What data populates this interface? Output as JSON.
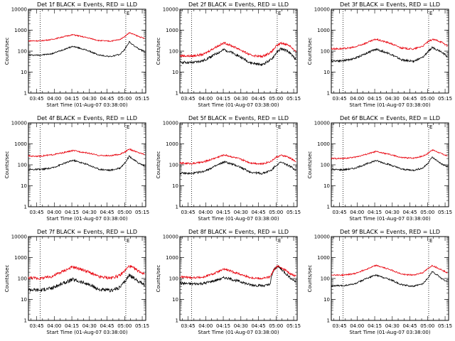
{
  "chart_data": [
    {
      "type": "line",
      "title": "Det 1f BLACK = Events, RED = LLD",
      "xlabel": "Start Time (01-Aug-07 03:38:00)",
      "ylabel": "Counts/sec",
      "yscale": "log",
      "ylim": [
        1,
        10000
      ],
      "xlim": [
        "03:38",
        "05:18"
      ],
      "x_ticks": [
        "03:45",
        "04:00",
        "04:15",
        "04:30",
        "04:45",
        "05:00",
        "05:15"
      ],
      "y_ticks": [
        "1",
        "10",
        "100",
        "1000",
        "10000"
      ],
      "markers": [
        {
          "time": "03:48",
          "label": ""
        },
        {
          "time": "05:01",
          "label": "E"
        }
      ],
      "series": [
        {
          "color": "#000000",
          "x": [
            "03:38",
            "03:48",
            "03:58",
            "04:08",
            "04:16",
            "04:28",
            "04:38",
            "04:48",
            "04:56",
            "05:00",
            "05:04",
            "05:08",
            "05:12",
            "05:17"
          ],
          "values": [
            65,
            65,
            75,
            120,
            170,
            110,
            65,
            55,
            70,
            120,
            280,
            180,
            130,
            95
          ]
        },
        {
          "color": "#e8000b",
          "x": [
            "03:38",
            "03:48",
            "03:58",
            "04:08",
            "04:16",
            "04:28",
            "04:38",
            "04:48",
            "04:56",
            "05:00",
            "05:04",
            "05:08",
            "05:12",
            "05:17"
          ],
          "values": [
            310,
            310,
            360,
            490,
            610,
            440,
            320,
            300,
            360,
            500,
            760,
            620,
            500,
            400
          ]
        }
      ]
    },
    {
      "type": "line",
      "title": "Det 2f BLACK = Events, RED = LLD",
      "xlabel": "Start Time (01-Aug-07 03:38:00)",
      "ylabel": "Counts/sec",
      "yscale": "log",
      "ylim": [
        1,
        10000
      ],
      "xlim": [
        "03:38",
        "05:18"
      ],
      "x_ticks": [
        "03:45",
        "04:00",
        "04:15",
        "04:30",
        "04:45",
        "05:00",
        "05:15"
      ],
      "y_ticks": [
        "1",
        "10",
        "100",
        "1000",
        "10000"
      ],
      "markers": [
        {
          "time": "03:48",
          "label": ""
        },
        {
          "time": "05:01",
          "label": "E"
        }
      ],
      "series": [
        {
          "color": "#000000",
          "x": [
            "03:38",
            "03:48",
            "03:58",
            "04:08",
            "04:16",
            "04:28",
            "04:38",
            "04:48",
            "04:56",
            "05:00",
            "05:04",
            "05:08",
            "05:12",
            "05:17"
          ],
          "values": [
            30,
            28,
            35,
            70,
            120,
            60,
            28,
            22,
            40,
            80,
            130,
            110,
            80,
            40
          ]
        },
        {
          "color": "#e8000b",
          "x": [
            "03:38",
            "03:48",
            "03:58",
            "04:08",
            "04:16",
            "04:28",
            "04:38",
            "04:48",
            "04:56",
            "05:00",
            "05:04",
            "05:08",
            "05:12",
            "05:17"
          ],
          "values": [
            60,
            58,
            70,
            150,
            250,
            130,
            65,
            55,
            90,
            170,
            240,
            220,
            180,
            90
          ]
        }
      ]
    },
    {
      "type": "line",
      "title": "Det 3f BLACK = Events, RED = LLD",
      "xlabel": "Start Time (01-Aug-07 03:38:00)",
      "ylabel": "Counts/sec",
      "yscale": "log",
      "ylim": [
        1,
        10000
      ],
      "xlim": [
        "03:38",
        "05:18"
      ],
      "x_ticks": [
        "03:45",
        "04:00",
        "04:15",
        "04:30",
        "04:45",
        "05:00",
        "05:15"
      ],
      "y_ticks": [
        "1",
        "10",
        "100",
        "1000",
        "10000"
      ],
      "markers": [
        {
          "time": "03:48",
          "label": ""
        },
        {
          "time": "05:01",
          "label": "E"
        }
      ],
      "series": [
        {
          "color": "#000000",
          "x": [
            "03:38",
            "03:48",
            "03:58",
            "04:08",
            "04:16",
            "04:28",
            "04:38",
            "04:48",
            "04:56",
            "05:00",
            "05:04",
            "05:08",
            "05:12",
            "05:17"
          ],
          "values": [
            35,
            35,
            45,
            80,
            125,
            75,
            38,
            33,
            50,
            90,
            150,
            120,
            95,
            55
          ]
        },
        {
          "color": "#e8000b",
          "x": [
            "03:38",
            "03:48",
            "03:58",
            "04:08",
            "04:16",
            "04:28",
            "04:38",
            "04:48",
            "04:56",
            "05:00",
            "05:04",
            "05:08",
            "05:12",
            "05:17"
          ],
          "values": [
            130,
            130,
            155,
            250,
            370,
            240,
            140,
            125,
            175,
            270,
            360,
            330,
            270,
            180
          ]
        }
      ]
    },
    {
      "type": "line",
      "title": "Det 4f BLACK = Events, RED = LLD",
      "xlabel": "Start Time (01-Aug-07 03:38:00)",
      "ylabel": "Counts/sec",
      "yscale": "log",
      "ylim": [
        1,
        10000
      ],
      "xlim": [
        "03:38",
        "05:18"
      ],
      "x_ticks": [
        "03:45",
        "04:00",
        "04:15",
        "04:30",
        "04:45",
        "05:00",
        "05:15"
      ],
      "y_ticks": [
        "1",
        "10",
        "100",
        "1000",
        "10000"
      ],
      "markers": [
        {
          "time": "03:48",
          "label": ""
        },
        {
          "time": "05:01",
          "label": "E"
        }
      ],
      "series": [
        {
          "color": "#000000",
          "x": [
            "03:38",
            "03:48",
            "03:58",
            "04:08",
            "04:16",
            "04:28",
            "04:38",
            "04:48",
            "04:56",
            "05:00",
            "05:04",
            "05:08",
            "05:12",
            "05:17"
          ],
          "values": [
            60,
            60,
            70,
            115,
            165,
            105,
            62,
            55,
            70,
            120,
            260,
            170,
            120,
            90
          ]
        },
        {
          "color": "#e8000b",
          "x": [
            "03:38",
            "03:48",
            "03:58",
            "04:08",
            "04:16",
            "04:28",
            "04:38",
            "04:48",
            "04:56",
            "05:00",
            "05:04",
            "05:08",
            "05:12",
            "05:17"
          ],
          "values": [
            260,
            260,
            300,
            380,
            480,
            370,
            280,
            270,
            320,
            400,
            560,
            460,
            380,
            320
          ]
        }
      ]
    },
    {
      "type": "line",
      "title": "Det 5f BLACK = Events, RED = LLD",
      "xlabel": "Start Time (01-Aug-07 03:38:00)",
      "ylabel": "Counts/sec",
      "yscale": "log",
      "ylim": [
        1,
        10000
      ],
      "xlim": [
        "03:38",
        "05:18"
      ],
      "x_ticks": [
        "03:45",
        "04:00",
        "04:15",
        "04:30",
        "04:45",
        "05:00",
        "05:15"
      ],
      "y_ticks": [
        "1",
        "10",
        "100",
        "1000",
        "10000"
      ],
      "markers": [
        {
          "time": "03:48",
          "label": ""
        },
        {
          "time": "05:01",
          "label": "E"
        }
      ],
      "series": [
        {
          "color": "#000000",
          "x": [
            "03:38",
            "03:48",
            "03:58",
            "04:08",
            "04:16",
            "04:28",
            "04:38",
            "04:48",
            "04:56",
            "05:00",
            "05:04",
            "05:08",
            "05:12",
            "05:17"
          ],
          "values": [
            40,
            38,
            48,
            85,
            140,
            85,
            45,
            38,
            55,
            95,
            130,
            110,
            85,
            55
          ]
        },
        {
          "color": "#e8000b",
          "x": [
            "03:38",
            "03:48",
            "03:58",
            "04:08",
            "04:16",
            "04:28",
            "04:38",
            "04:48",
            "04:56",
            "05:00",
            "05:04",
            "05:08",
            "05:12",
            "05:17"
          ],
          "values": [
            120,
            115,
            135,
            210,
            300,
            200,
            125,
            110,
            150,
            230,
            280,
            260,
            210,
            140
          ]
        }
      ]
    },
    {
      "type": "line",
      "title": "Det 6f BLACK = Events, RED = LLD",
      "xlabel": "Start Time (01-Aug-07 03:38:00)",
      "ylabel": "Counts/sec",
      "yscale": "log",
      "ylim": [
        1,
        10000
      ],
      "xlim": [
        "03:38",
        "05:18"
      ],
      "x_ticks": [
        "03:45",
        "04:00",
        "04:15",
        "04:30",
        "04:45",
        "05:00",
        "05:15"
      ],
      "y_ticks": [
        "1",
        "10",
        "100",
        "1000",
        "10000"
      ],
      "markers": [
        {
          "time": "03:48",
          "label": ""
        },
        {
          "time": "05:01",
          "label": "E"
        }
      ],
      "series": [
        {
          "color": "#000000",
          "x": [
            "03:38",
            "03:48",
            "03:58",
            "04:08",
            "04:16",
            "04:28",
            "04:38",
            "04:48",
            "04:56",
            "05:00",
            "05:04",
            "05:08",
            "05:12",
            "05:17"
          ],
          "values": [
            60,
            58,
            68,
            110,
            160,
            100,
            62,
            55,
            70,
            115,
            230,
            160,
            110,
            80
          ]
        },
        {
          "color": "#e8000b",
          "x": [
            "03:38",
            "03:48",
            "03:58",
            "04:08",
            "04:16",
            "04:28",
            "04:38",
            "04:48",
            "04:56",
            "05:00",
            "05:04",
            "05:08",
            "05:12",
            "05:17"
          ],
          "values": [
            200,
            200,
            230,
            320,
            430,
            310,
            220,
            210,
            260,
            340,
            520,
            420,
            340,
            260
          ]
        }
      ]
    },
    {
      "type": "line",
      "title": "Det 7f BLACK = Events, RED = LLD",
      "xlabel": "Start Time (01-Aug-07 03:38:00)",
      "ylabel": "Counts/sec",
      "yscale": "log",
      "ylim": [
        1,
        10000
      ],
      "xlim": [
        "03:38",
        "05:18"
      ],
      "x_ticks": [
        "03:45",
        "04:00",
        "04:15",
        "04:30",
        "04:45",
        "05:00",
        "05:15"
      ],
      "y_ticks": [
        "1",
        "10",
        "100",
        "1000",
        "10000"
      ],
      "markers": [
        {
          "time": "03:48",
          "label": ""
        },
        {
          "time": "05:01",
          "label": "E"
        }
      ],
      "series": [
        {
          "color": "#000000",
          "x": [
            "03:38",
            "03:48",
            "03:58",
            "04:08",
            "04:16",
            "04:28",
            "04:38",
            "04:48",
            "04:56",
            "05:00",
            "05:04",
            "05:08",
            "05:12",
            "05:17"
          ],
          "values": [
            30,
            28,
            35,
            60,
            90,
            55,
            30,
            26,
            38,
            70,
            150,
            100,
            75,
            50
          ]
        },
        {
          "color": "#e8000b",
          "x": [
            "03:38",
            "03:48",
            "03:58",
            "04:08",
            "04:16",
            "04:28",
            "04:38",
            "04:48",
            "04:56",
            "05:00",
            "05:04",
            "05:08",
            "05:12",
            "05:17"
          ],
          "values": [
            110,
            100,
            125,
            230,
            360,
            220,
            120,
            105,
            140,
            230,
            400,
            300,
            230,
            160
          ]
        }
      ]
    },
    {
      "type": "line",
      "title": "Det 8f BLACK = Events, RED = LLD",
      "xlabel": "Start Time (01-Aug-07 03:38:00)",
      "ylabel": "Counts/sec",
      "yscale": "log",
      "ylim": [
        1,
        10000
      ],
      "xlim": [
        "03:38",
        "05:18"
      ],
      "x_ticks": [
        "03:45",
        "04:00",
        "04:15",
        "04:30",
        "04:45",
        "05:00",
        "05:15"
      ],
      "y_ticks": [
        "1",
        "10",
        "100",
        "1000",
        "10000"
      ],
      "markers": [
        {
          "time": "03:48",
          "label": ""
        },
        {
          "time": "05:01",
          "label": "E"
        }
      ],
      "series": [
        {
          "color": "#000000",
          "x": [
            "03:38",
            "03:48",
            "03:58",
            "04:08",
            "04:16",
            "04:28",
            "04:38",
            "04:48",
            "04:55",
            "04:56",
            "04:58",
            "05:01",
            "05:04",
            "05:08",
            "05:12",
            "05:17"
          ],
          "values": [
            60,
            55,
            58,
            80,
            110,
            75,
            50,
            45,
            50,
            120,
            250,
            380,
            300,
            180,
            110,
            70
          ]
        },
        {
          "color": "#e8000b",
          "x": [
            "03:38",
            "03:48",
            "03:58",
            "04:08",
            "04:16",
            "04:28",
            "04:38",
            "04:48",
            "04:55",
            "04:58",
            "05:01",
            "05:04",
            "05:08",
            "05:12",
            "05:17"
          ],
          "values": [
            120,
            110,
            115,
            180,
            280,
            170,
            110,
            100,
            120,
            250,
            380,
            350,
            250,
            170,
            130
          ]
        }
      ]
    },
    {
      "type": "line",
      "title": "Det 9f BLACK = Events, RED = LLD",
      "xlabel": "Start Time (01-Aug-07 03:38:00)",
      "ylabel": "Counts/sec",
      "yscale": "log",
      "ylim": [
        1,
        10000
      ],
      "xlim": [
        "03:38",
        "05:18"
      ],
      "x_ticks": [
        "03:45",
        "04:00",
        "04:15",
        "04:30",
        "04:45",
        "05:00",
        "05:15"
      ],
      "y_ticks": [
        "1",
        "10",
        "100",
        "1000",
        "10000"
      ],
      "markers": [
        {
          "time": "03:48",
          "label": ""
        },
        {
          "time": "05:01",
          "label": "E"
        }
      ],
      "series": [
        {
          "color": "#000000",
          "x": [
            "03:38",
            "03:48",
            "03:58",
            "04:08",
            "04:16",
            "04:28",
            "04:38",
            "04:48",
            "04:56",
            "05:00",
            "05:04",
            "05:08",
            "05:12",
            "05:17"
          ],
          "values": [
            45,
            45,
            55,
            100,
            145,
            90,
            50,
            42,
            55,
            100,
            210,
            150,
            100,
            70
          ]
        },
        {
          "color": "#e8000b",
          "x": [
            "03:38",
            "03:48",
            "03:58",
            "04:08",
            "04:16",
            "04:28",
            "04:38",
            "04:48",
            "04:56",
            "05:00",
            "05:04",
            "05:08",
            "05:12",
            "05:17"
          ],
          "values": [
            150,
            145,
            170,
            280,
            420,
            270,
            160,
            145,
            190,
            280,
            420,
            330,
            260,
            190
          ]
        }
      ]
    }
  ]
}
